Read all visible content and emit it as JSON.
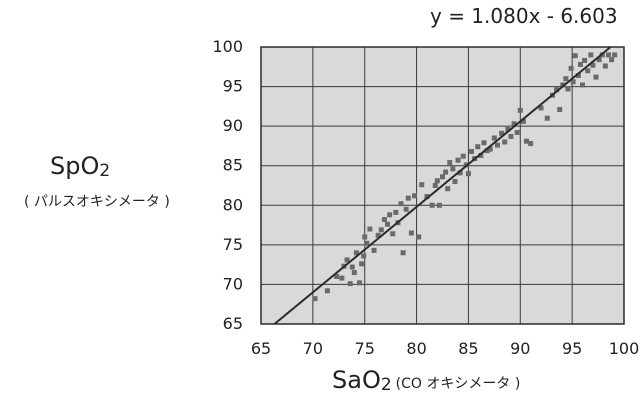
{
  "chart_data": {
    "type": "scatter",
    "equation": "y = 1.080x - 6.603",
    "ylabel": {
      "main": "SpO",
      "sub": "2",
      "note": "( パルスオキシメータ )"
    },
    "xlabel": {
      "main": "SaO",
      "sub": "2",
      "note": "(CO オキシメータ )"
    },
    "xlim": [
      65,
      100
    ],
    "ylim": [
      65,
      100
    ],
    "x_ticks": [
      65,
      70,
      75,
      80,
      85,
      90,
      95,
      100
    ],
    "y_ticks": [
      65,
      70,
      75,
      80,
      85,
      90,
      95,
      100
    ],
    "grid": true,
    "regression": {
      "slope": 1.08,
      "intercept": -6.603
    },
    "series": [
      {
        "points": [
          [
            70.2,
            68.2
          ],
          [
            71.4,
            69.2
          ],
          [
            72.3,
            71.0
          ],
          [
            72.8,
            70.8
          ],
          [
            73.0,
            72.3
          ],
          [
            73.3,
            73.1
          ],
          [
            73.6,
            70.1
          ],
          [
            73.8,
            72.2
          ],
          [
            74.0,
            71.5
          ],
          [
            74.2,
            74.0
          ],
          [
            74.5,
            70.2
          ],
          [
            74.7,
            72.6
          ],
          [
            74.9,
            73.6
          ],
          [
            75.0,
            76.0
          ],
          [
            75.2,
            75.2
          ],
          [
            75.5,
            77.0
          ],
          [
            75.9,
            74.3
          ],
          [
            76.3,
            76.2
          ],
          [
            76.6,
            76.9
          ],
          [
            76.9,
            78.2
          ],
          [
            77.2,
            77.6
          ],
          [
            77.4,
            78.8
          ],
          [
            77.7,
            76.4
          ],
          [
            78.0,
            79.1
          ],
          [
            78.2,
            77.8
          ],
          [
            78.5,
            80.2
          ],
          [
            78.7,
            74.0
          ],
          [
            79.0,
            79.5
          ],
          [
            79.2,
            80.9
          ],
          [
            79.5,
            76.5
          ],
          [
            79.8,
            81.2
          ],
          [
            80.2,
            76.0
          ],
          [
            80.5,
            82.6
          ],
          [
            81.0,
            81.1
          ],
          [
            81.5,
            80.0
          ],
          [
            81.8,
            82.5
          ],
          [
            82.0,
            83.1
          ],
          [
            82.2,
            80.0
          ],
          [
            82.5,
            83.6
          ],
          [
            82.8,
            84.2
          ],
          [
            83.0,
            82.1
          ],
          [
            83.2,
            85.4
          ],
          [
            83.5,
            84.6
          ],
          [
            83.7,
            83.0
          ],
          [
            84.0,
            85.7
          ],
          [
            84.2,
            84.1
          ],
          [
            84.5,
            86.2
          ],
          [
            84.8,
            85.1
          ],
          [
            85.0,
            84.0
          ],
          [
            85.3,
            86.8
          ],
          [
            85.6,
            85.9
          ],
          [
            85.9,
            87.4
          ],
          [
            86.2,
            86.3
          ],
          [
            86.5,
            87.9
          ],
          [
            86.8,
            86.9
          ],
          [
            87.1,
            87.1
          ],
          [
            87.5,
            88.5
          ],
          [
            87.8,
            87.6
          ],
          [
            88.2,
            89.1
          ],
          [
            88.5,
            88.0
          ],
          [
            88.8,
            89.6
          ],
          [
            89.1,
            88.7
          ],
          [
            89.4,
            90.3
          ],
          [
            89.7,
            89.2
          ],
          [
            90.0,
            92.0
          ],
          [
            90.3,
            90.6
          ],
          [
            90.6,
            88.1
          ],
          [
            91.0,
            87.8
          ],
          [
            92.0,
            92.3
          ],
          [
            92.6,
            91.0
          ],
          [
            93.1,
            93.9
          ],
          [
            93.5,
            94.6
          ],
          [
            93.8,
            92.1
          ],
          [
            94.1,
            95.2
          ],
          [
            94.4,
            96.0
          ],
          [
            94.6,
            94.7
          ],
          [
            94.9,
            97.3
          ],
          [
            95.1,
            95.6
          ],
          [
            95.3,
            98.9
          ],
          [
            95.6,
            96.4
          ],
          [
            95.8,
            97.8
          ],
          [
            96.0,
            95.2
          ],
          [
            96.2,
            98.3
          ],
          [
            96.5,
            97.0
          ],
          [
            96.8,
            99.0
          ],
          [
            97.0,
            97.7
          ],
          [
            97.3,
            96.2
          ],
          [
            97.6,
            98.4
          ],
          [
            97.9,
            99.0
          ],
          [
            98.2,
            97.6
          ],
          [
            98.5,
            99.0
          ],
          [
            98.8,
            98.4
          ],
          [
            99.1,
            99.0
          ]
        ]
      }
    ]
  }
}
